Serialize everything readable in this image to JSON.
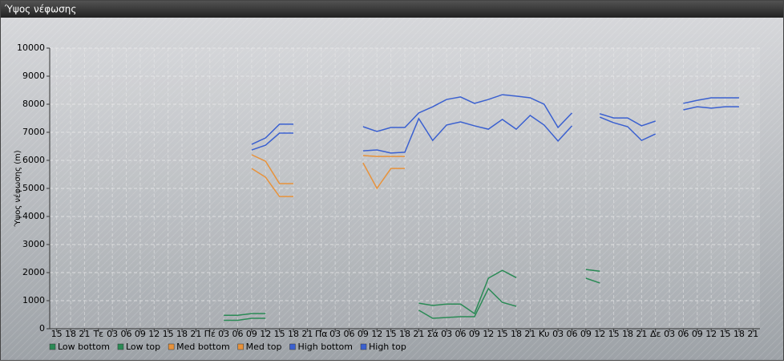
{
  "chart_data": {
    "type": "line",
    "title": "Ύψος νέφωσης",
    "ylabel": "Ύψος νέφωσης (m)",
    "categories": [
      "15",
      "18",
      "21",
      "Τε",
      "03",
      "06",
      "09",
      "12",
      "15",
      "18",
      "21",
      "Πέ",
      "03",
      "06",
      "09",
      "12",
      "15",
      "18",
      "21",
      "Πα",
      "03",
      "06",
      "09",
      "12",
      "15",
      "18",
      "21",
      "Σά",
      "03",
      "06",
      "09",
      "12",
      "15",
      "18",
      "21",
      "Κυ",
      "03",
      "06",
      "09",
      "12",
      "15",
      "18",
      "21",
      "Δε",
      "03",
      "06",
      "09",
      "12",
      "15",
      "18",
      "21"
    ],
    "series": [
      {
        "name": "Low bottom",
        "color": "#2a8a55",
        "values": [
          null,
          null,
          null,
          null,
          null,
          null,
          null,
          null,
          null,
          null,
          null,
          null,
          300,
          300,
          370,
          370,
          null,
          null,
          null,
          null,
          null,
          null,
          null,
          null,
          null,
          null,
          660,
          370,
          400,
          430,
          430,
          1430,
          940,
          800,
          null,
          null,
          null,
          null,
          1800,
          1630,
          null,
          null,
          null,
          null,
          null,
          null,
          null,
          null,
          null,
          null,
          null
        ]
      },
      {
        "name": "Low top",
        "color": "#2a8a55",
        "values": [
          null,
          null,
          null,
          null,
          null,
          null,
          null,
          null,
          null,
          null,
          null,
          null,
          480,
          480,
          540,
          540,
          null,
          null,
          null,
          null,
          null,
          null,
          null,
          null,
          null,
          null,
          910,
          830,
          880,
          880,
          540,
          1800,
          2080,
          1820,
          null,
          null,
          null,
          null,
          2110,
          2050,
          null,
          null,
          null,
          null,
          null,
          null,
          null,
          null,
          null,
          null,
          null
        ]
      },
      {
        "name": "Med bottom",
        "color": "#e8923a",
        "values": [
          null,
          null,
          null,
          null,
          null,
          null,
          null,
          null,
          null,
          null,
          null,
          null,
          null,
          null,
          5710,
          5400,
          4710,
          4710,
          null,
          null,
          null,
          null,
          5910,
          5000,
          5710,
          5710,
          null,
          null,
          null,
          null,
          null,
          null,
          null,
          null,
          null,
          null,
          null,
          null,
          null,
          null,
          null,
          null,
          null,
          null,
          null,
          null,
          null,
          null,
          null,
          null,
          null
        ]
      },
      {
        "name": "Med top",
        "color": "#e8923a",
        "values": [
          null,
          null,
          null,
          null,
          null,
          null,
          null,
          null,
          null,
          null,
          null,
          null,
          null,
          null,
          6200,
          5970,
          5170,
          5170,
          null,
          null,
          null,
          null,
          6170,
          6140,
          6140,
          6140,
          null,
          null,
          null,
          null,
          null,
          null,
          null,
          null,
          null,
          null,
          null,
          null,
          null,
          null,
          null,
          null,
          null,
          null,
          null,
          null,
          null,
          null,
          null,
          null,
          null
        ]
      },
      {
        "name": "High bottom",
        "color": "#3a60d0",
        "values": [
          null,
          null,
          null,
          null,
          null,
          null,
          null,
          null,
          null,
          null,
          null,
          null,
          null,
          null,
          6370,
          6540,
          6970,
          6970,
          null,
          null,
          null,
          null,
          6340,
          6370,
          6260,
          6290,
          7490,
          6710,
          7260,
          7370,
          7230,
          7110,
          7460,
          7110,
          7600,
          7260,
          6690,
          7230,
          null,
          7540,
          7340,
          7200,
          6710,
          6940,
          null,
          7800,
          7910,
          7860,
          7910,
          7910,
          null
        ]
      },
      {
        "name": "High top",
        "color": "#3a60d0",
        "values": [
          null,
          null,
          null,
          null,
          null,
          null,
          null,
          null,
          null,
          null,
          null,
          null,
          null,
          null,
          6570,
          6800,
          7290,
          7290,
          null,
          null,
          null,
          null,
          7200,
          7030,
          7170,
          7170,
          7690,
          7910,
          8170,
          8260,
          8030,
          8170,
          8340,
          8290,
          8230,
          8000,
          7170,
          7690,
          null,
          7660,
          7510,
          7510,
          7230,
          7400,
          null,
          8030,
          8140,
          8230,
          8230,
          8230,
          null
        ]
      }
    ],
    "ylim": [
      0,
      10000
    ],
    "yticks": [
      0,
      1000,
      2000,
      3000,
      4000,
      5000,
      6000,
      7000,
      8000,
      9000,
      10000
    ],
    "grid": true,
    "legend": "bottom-left"
  }
}
